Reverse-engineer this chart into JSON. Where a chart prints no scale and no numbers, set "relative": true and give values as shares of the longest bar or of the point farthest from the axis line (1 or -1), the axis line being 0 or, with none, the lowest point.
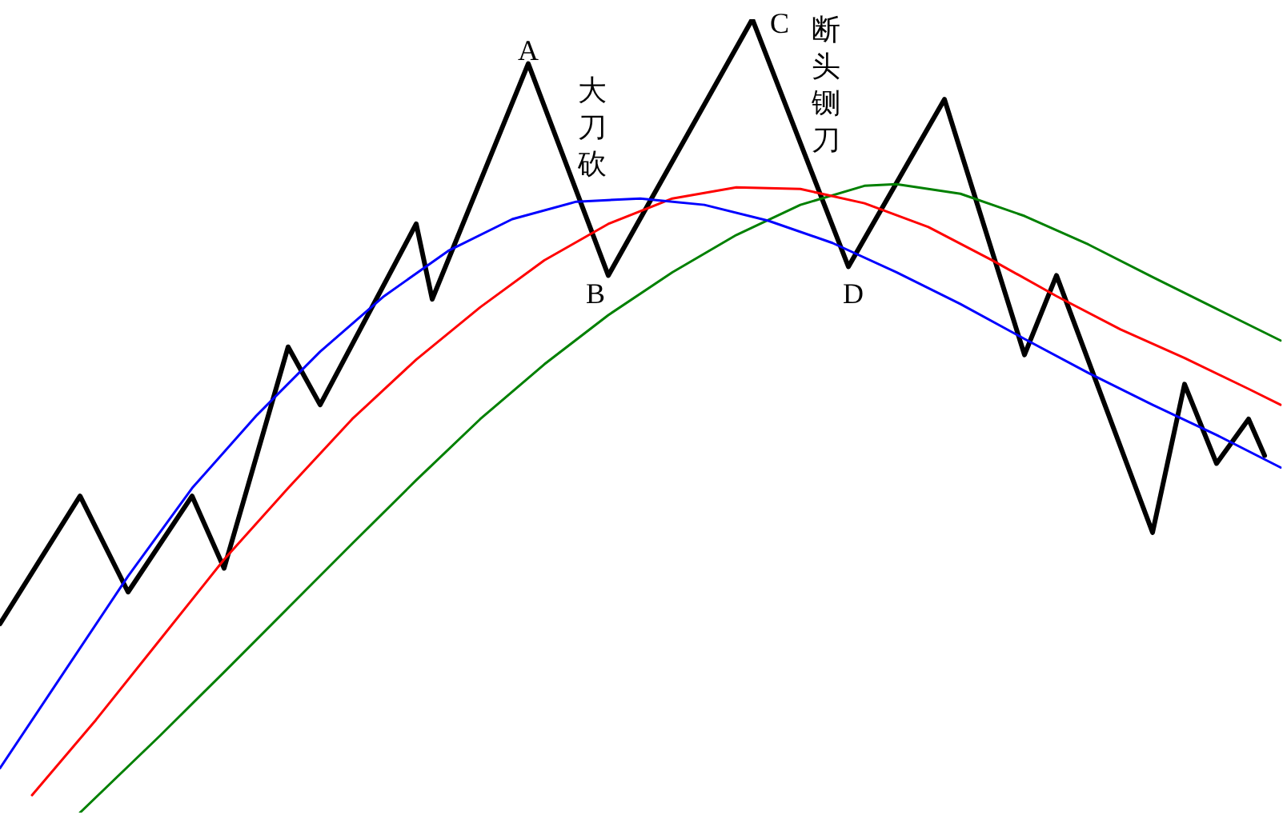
{
  "chart_data": {
    "type": "line",
    "relative": true,
    "legend": false,
    "grid": false,
    "marker": "none",
    "categories": [
      null,
      null,
      null,
      null,
      null,
      null,
      null,
      null,
      null,
      null,
      null,
      null,
      null,
      null,
      null,
      null,
      null,
      null,
      null,
      null,
      null,
      null,
      null,
      null,
      null,
      null,
      null,
      null,
      null,
      null,
      null,
      null,
      null,
      null,
      null,
      null,
      null,
      null,
      null,
      null,
      null,
      null,
      null,
      null,
      null,
      null,
      null,
      null,
      null,
      null,
      null,
      null,
      null,
      null,
      null,
      null,
      null,
      null,
      null,
      null,
      null,
      null,
      null,
      null,
      null,
      null,
      null,
      null,
      null,
      null,
      null,
      null,
      null,
      null,
      null,
      null,
      null,
      null,
      null,
      null,
      null
    ],
    "series": [
      {
        "color": "#0000ff",
        "values": [
          0.056,
          null,
          null,
          null,
          0.177,
          null,
          null,
          null,
          0.298,
          null,
          null,
          null,
          0.409,
          null,
          null,
          null,
          0.5,
          null,
          null,
          null,
          0.581,
          null,
          null,
          null,
          0.651,
          null,
          null,
          null,
          0.708,
          null,
          null,
          null,
          0.748,
          null,
          null,
          null,
          0.77,
          null,
          null,
          null,
          0.774,
          null,
          null,
          null,
          0.766,
          null,
          null,
          null,
          0.746,
          null,
          null,
          null,
          0.718,
          null,
          null,
          null,
          0.681,
          null,
          null,
          null,
          0.641,
          null,
          null,
          null,
          0.597,
          null,
          null,
          null,
          0.554,
          null,
          null,
          null,
          0.514,
          null,
          null,
          null,
          0.476,
          null,
          null,
          null,
          0.435
        ]
      },
      {
        "color": "#ff0000",
        "values": [
          null,
          null,
          0.022,
          null,
          null,
          null,
          0.117,
          null,
          null,
          null,
          0.218,
          null,
          null,
          null,
          0.319,
          null,
          null,
          null,
          0.409,
          null,
          null,
          null,
          0.496,
          null,
          null,
          null,
          0.571,
          null,
          null,
          null,
          0.637,
          null,
          null,
          null,
          0.696,
          null,
          null,
          null,
          0.742,
          null,
          null,
          null,
          0.774,
          null,
          null,
          null,
          0.788,
          null,
          null,
          null,
          0.786,
          null,
          null,
          null,
          0.768,
          null,
          null,
          null,
          0.738,
          null,
          null,
          null,
          0.696,
          null,
          null,
          null,
          0.651,
          null,
          null,
          null,
          0.609,
          null,
          null,
          null,
          0.573,
          null,
          null,
          null,
          0.534,
          null,
          0.514
        ]
      },
      {
        "color": "#008000",
        "values": [
          null,
          null,
          null,
          null,
          null,
          0,
          null,
          null,
          null,
          null,
          0.097,
          null,
          null,
          null,
          0.177,
          null,
          null,
          null,
          0.258,
          null,
          null,
          null,
          0.339,
          null,
          null,
          null,
          0.419,
          null,
          null,
          null,
          0.496,
          null,
          null,
          null,
          0.565,
          null,
          null,
          null,
          0.627,
          null,
          null,
          null,
          0.681,
          null,
          null,
          null,
          0.728,
          null,
          null,
          null,
          0.766,
          null,
          null,
          null,
          0.79,
          null,
          0.792,
          null,
          null,
          null,
          0.78,
          null,
          null,
          null,
          0.752,
          null,
          null,
          null,
          0.716,
          null,
          null,
          null,
          0.675,
          null,
          null,
          null,
          0.635,
          null,
          null,
          null,
          0.595
        ]
      },
      {
        "color": "#000000",
        "values": [
          0.238,
          null,
          null,
          null,
          null,
          0.399,
          null,
          null,
          0.278,
          null,
          null,
          null,
          0.399,
          null,
          0.308,
          null,
          null,
          null,
          0.587,
          null,
          0.514,
          null,
          null,
          null,
          null,
          null,
          0.742,
          0.647,
          null,
          null,
          null,
          null,
          null,
          0.944,
          null,
          null,
          null,
          null,
          0.677,
          null,
          null,
          null,
          null,
          null,
          null,
          null,
          null,
          1,
          null,
          null,
          null,
          null,
          null,
          0.688,
          null,
          null,
          null,
          null,
          null,
          0.899,
          null,
          null,
          null,
          null,
          0.577,
          null,
          0.677,
          null,
          null,
          null,
          null,
          null,
          0.353,
          null,
          0.54,
          null,
          0.44,
          null,
          0.496,
          0.45,
          null
        ]
      }
    ],
    "annotations": [
      "A",
      "大刀砍",
      "B",
      "C",
      "断头铡刀",
      "D"
    ]
  }
}
